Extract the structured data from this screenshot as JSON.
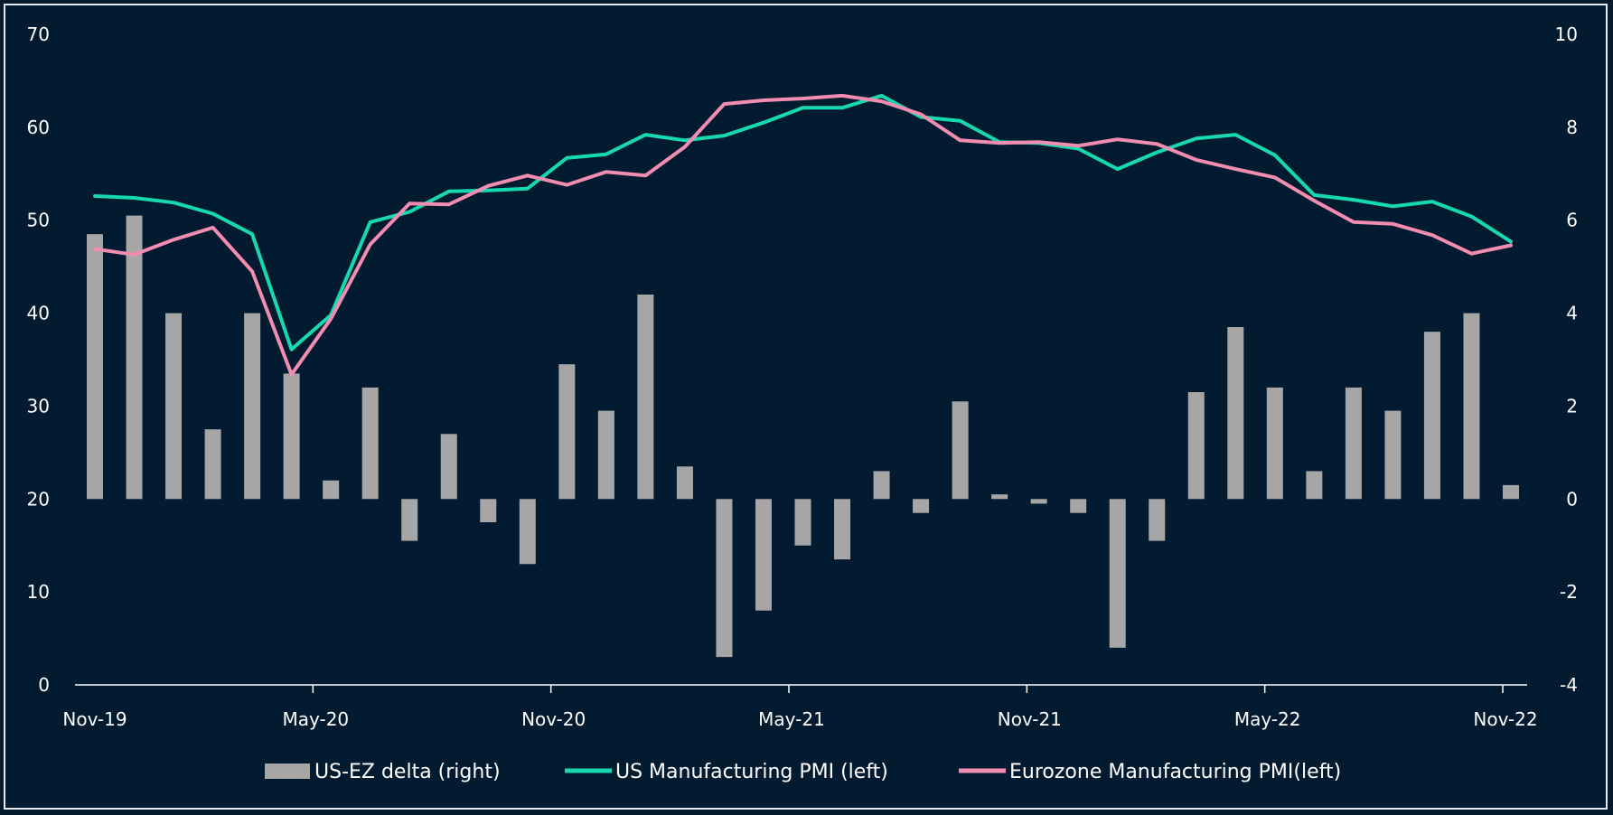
{
  "chart_data": {
    "type": "bar",
    "x_tick_labels": [
      "Nov-19",
      "May-20",
      "Nov-20",
      "May-21",
      "Nov-21",
      "May-22",
      "Nov-22"
    ],
    "left_axis": {
      "ylim": [
        0,
        70
      ],
      "ticks": [
        "0",
        "10",
        "20",
        "30",
        "40",
        "50",
        "60",
        "70"
      ]
    },
    "right_axis": {
      "ylim": [
        -4,
        10
      ],
      "ticks": [
        "-4",
        "-2",
        "0",
        "2",
        "4",
        "6",
        "8",
        "10"
      ]
    },
    "categories": [
      "Nov-19",
      "Dec-19",
      "Jan-20",
      "Feb-20",
      "Mar-20",
      "Apr-20",
      "May-20",
      "Jun-20",
      "Jul-20",
      "Aug-20",
      "Sep-20",
      "Oct-20",
      "Nov-20",
      "Dec-20",
      "Jan-21",
      "Feb-21",
      "Mar-21",
      "Apr-21",
      "May-21",
      "Jun-21",
      "Jul-21",
      "Aug-21",
      "Sep-21",
      "Oct-21",
      "Nov-21",
      "Dec-21",
      "Jan-22",
      "Feb-22",
      "Mar-22",
      "Apr-22",
      "May-22",
      "Jun-22",
      "Jul-22",
      "Aug-22",
      "Sep-22",
      "Oct-22",
      "Nov-22"
    ],
    "series": [
      {
        "name": "US-EZ delta (right)",
        "type": "bar",
        "axis": "right",
        "color": "#a6a6a6",
        "values": [
          5.7,
          6.1,
          4.0,
          1.5,
          4.0,
          2.7,
          0.4,
          2.4,
          -0.9,
          1.4,
          -0.5,
          -1.4,
          2.9,
          1.9,
          4.4,
          0.7,
          -3.4,
          -2.4,
          -1.0,
          -1.3,
          0.6,
          -0.3,
          2.1,
          0.1,
          -0.1,
          -0.3,
          -3.2,
          -0.9,
          2.3,
          3.7,
          2.4,
          0.6,
          2.4,
          1.9,
          3.6,
          4.0,
          0.3
        ]
      },
      {
        "name": "US Manufacturing PMI (left)",
        "type": "line",
        "axis": "left",
        "color": "#17d9b0",
        "values": [
          52.6,
          52.4,
          51.9,
          50.7,
          48.5,
          36.1,
          39.8,
          49.8,
          50.9,
          53.1,
          53.2,
          53.4,
          56.7,
          57.1,
          59.2,
          58.6,
          59.1,
          60.5,
          62.1,
          62.1,
          63.4,
          61.1,
          60.7,
          58.4,
          58.3,
          57.7,
          55.5,
          57.3,
          58.8,
          59.2,
          57.0,
          52.7,
          52.2,
          51.5,
          52.0,
          50.4,
          47.7
        ]
      },
      {
        "name": "Eurozone Manufacturing PMI(left)",
        "type": "line",
        "axis": "left",
        "color": "#f28cb1",
        "values": [
          46.9,
          46.3,
          47.9,
          49.2,
          44.5,
          33.4,
          39.4,
          47.4,
          51.8,
          51.7,
          53.7,
          54.8,
          53.8,
          55.2,
          54.8,
          57.9,
          62.5,
          62.9,
          63.1,
          63.4,
          62.8,
          61.4,
          58.6,
          58.3,
          58.4,
          58.0,
          58.7,
          58.2,
          56.5,
          55.5,
          54.6,
          52.1,
          49.8,
          49.6,
          48.4,
          46.4,
          47.3
        ]
      }
    ],
    "legend": {
      "position": "bottom"
    },
    "grid": false
  }
}
